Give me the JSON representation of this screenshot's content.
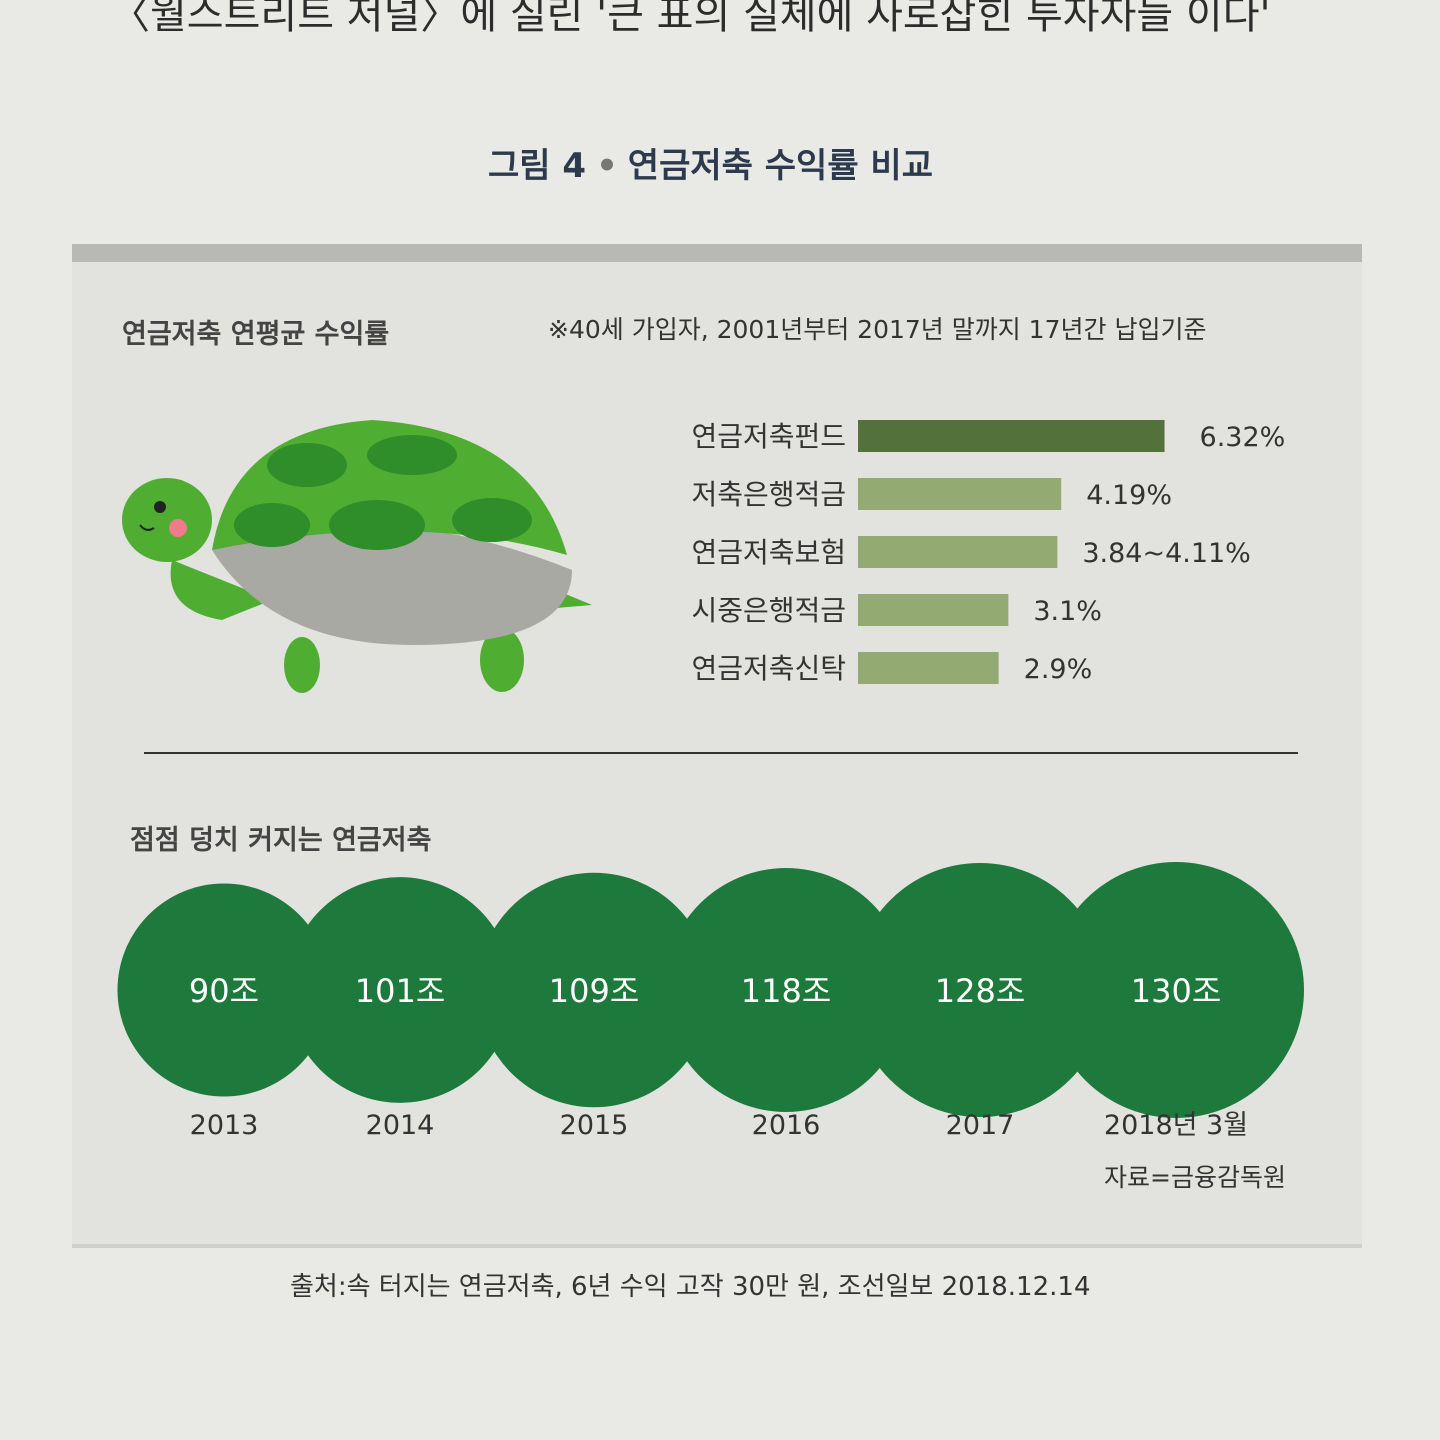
{
  "top_text": "〈월스트리트 저널〉에 실린 '큰 표의 실체에 사로잡힌 투자자들 이다'",
  "figure": {
    "label": "그림 4",
    "title": "연금저축 수익률 비교"
  },
  "source_note": "자료=금융감독원",
  "credit": "출처:속 터지는 연금저축, 6년 수익 고작 30만 원, 조선일보 2018.12.14",
  "colors": {
    "bar_dark": "#53713a",
    "bar_light": "#93ab72",
    "bubble": "#1e7a3c",
    "text": "#333333"
  },
  "chart_data": [
    {
      "type": "bar",
      "orientation": "horizontal",
      "title": "연금저축 연평균 수익률",
      "note": "※40세 가입자, 2001년부터 2017년 말까지 17년간 납입기준",
      "categories": [
        "연금저축펀드",
        "저축은행적금",
        "연금저축보험",
        "시중은행적금",
        "연금저축신탁"
      ],
      "values": [
        6.32,
        4.19,
        4.11,
        3.1,
        2.9
      ],
      "value_labels": [
        "6.32%",
        "4.19%",
        "3.84~4.11%",
        "3.1%",
        "2.9%"
      ],
      "unit": "%",
      "highlight_index": 0
    },
    {
      "type": "bubble",
      "title": "점점 덩치 커지는 연금저축",
      "categories": [
        "2013",
        "2014",
        "2015",
        "2016",
        "2017",
        "2018년 3월"
      ],
      "values": [
        90,
        101,
        109,
        118,
        128,
        130
      ],
      "value_labels": [
        "90조",
        "101조",
        "109조",
        "118조",
        "128조",
        "130조"
      ],
      "unit": "조"
    }
  ]
}
